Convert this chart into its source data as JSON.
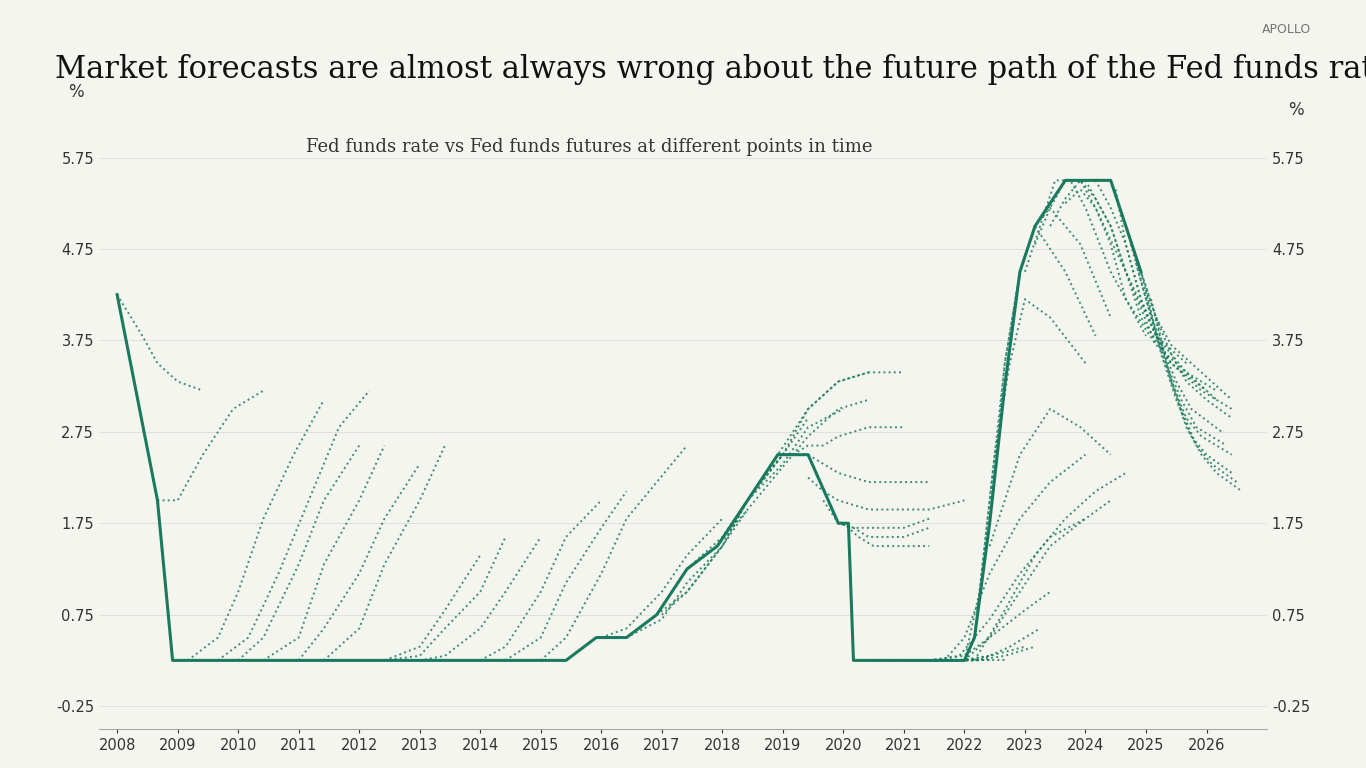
{
  "title": "Market forecasts are almost always wrong about the future path of the Fed funds rate",
  "subtitle": "Fed funds rate vs Fed funds futures at different points in time",
  "watermark": "APOLLO",
  "ylabel_left": "%",
  "ylabel_right": "%",
  "yticks": [
    -0.25,
    0.75,
    1.75,
    2.75,
    3.75,
    4.75,
    5.75
  ],
  "ylim": [
    -0.5,
    6.3
  ],
  "xlim_start": 2007.7,
  "xlim_end": 2027.0,
  "xticks": [
    2008,
    2009,
    2010,
    2011,
    2012,
    2013,
    2014,
    2015,
    2016,
    2017,
    2018,
    2019,
    2020,
    2021,
    2022,
    2023,
    2024,
    2025,
    2026
  ],
  "line_color": "#1a7a5e",
  "background_color": "#f5f5f0",
  "title_fontsize": 22,
  "subtitle_fontsize": 13
}
